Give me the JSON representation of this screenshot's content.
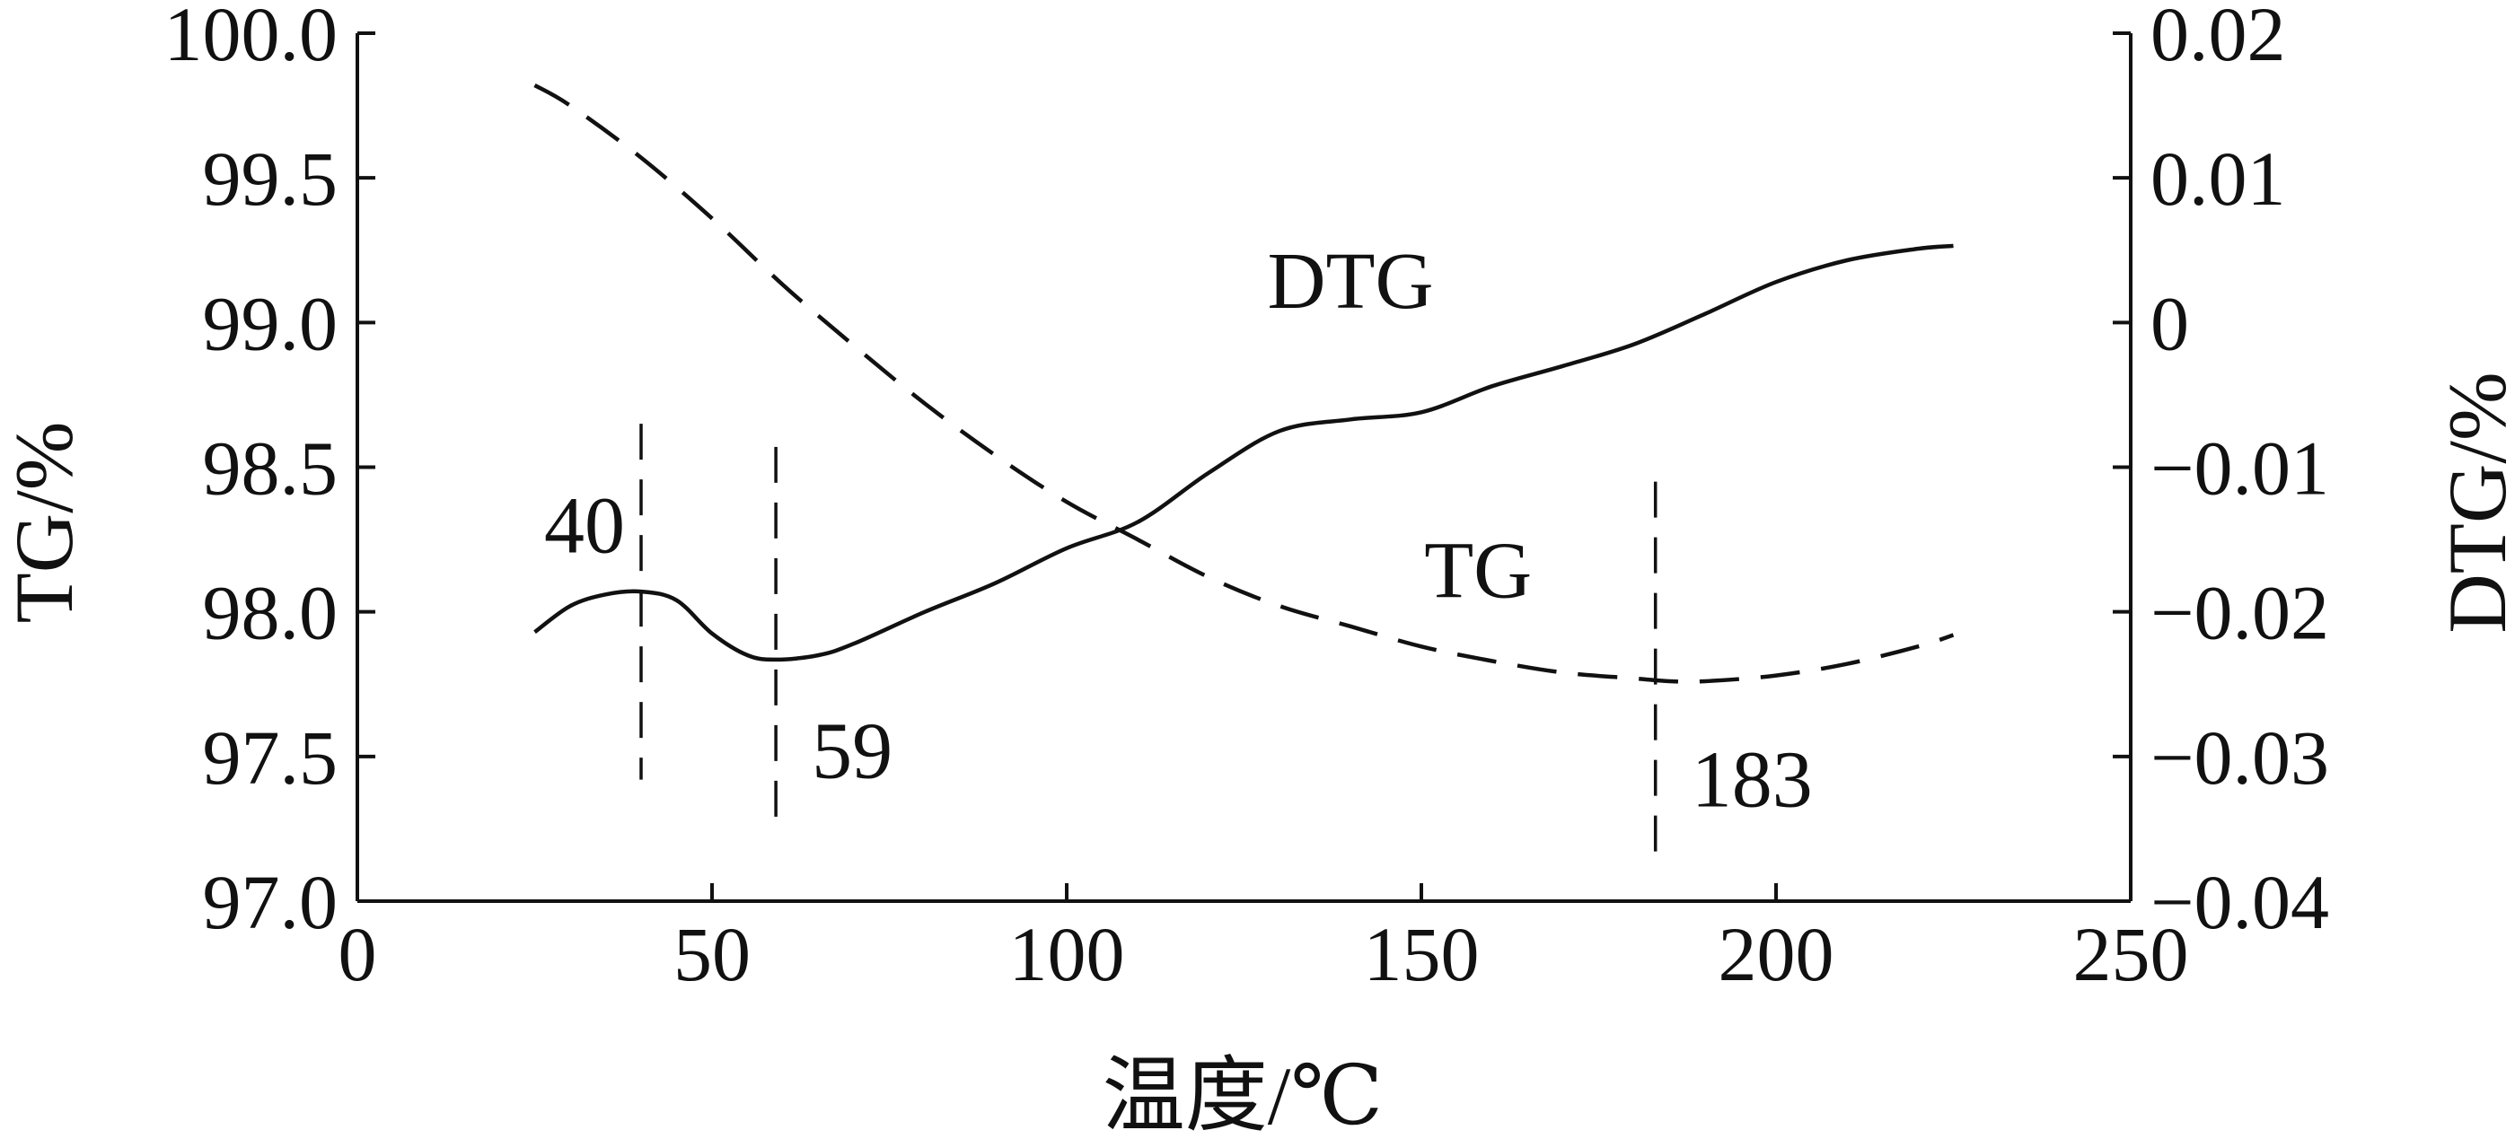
{
  "chart_data": {
    "type": "line",
    "x_axis": {
      "label": "温度/℃",
      "range": [
        0,
        250
      ],
      "ticks": [
        "0",
        "50",
        "100",
        "150",
        "200",
        "250"
      ]
    },
    "y_axis_left": {
      "label": "TG/%",
      "range": [
        97.0,
        100.0
      ],
      "ticks": [
        "97.0",
        "97.5",
        "98.0",
        "98.5",
        "99.0",
        "99.5",
        "100.0"
      ]
    },
    "y_axis_right": {
      "label": "DTG/%",
      "range": [
        -0.04,
        0.02
      ],
      "ticks": [
        "−0.04",
        "−0.03",
        "−0.02",
        "−0.01",
        "0",
        "0.01",
        "0.02"
      ]
    },
    "series": [
      {
        "name": "TG",
        "axis": "left",
        "style": "dashed",
        "x": [
          25,
          30,
          40,
          50,
          60,
          70,
          80,
          90,
          100,
          110,
          120,
          130,
          140,
          150,
          160,
          170,
          180,
          185,
          190,
          200,
          210,
          220,
          225
        ],
        "y": [
          99.82,
          99.75,
          99.57,
          99.36,
          99.13,
          98.92,
          98.72,
          98.54,
          98.38,
          98.25,
          98.12,
          98.02,
          97.95,
          97.88,
          97.83,
          97.79,
          97.77,
          97.76,
          97.76,
          97.78,
          97.82,
          97.88,
          97.92
        ]
      },
      {
        "name": "DTG",
        "axis": "right",
        "style": "solid",
        "x": [
          25,
          30,
          35,
          40,
          45,
          50,
          55,
          59,
          65,
          70,
          80,
          90,
          100,
          110,
          120,
          130,
          140,
          150,
          160,
          170,
          180,
          190,
          200,
          210,
          220,
          225
        ],
        "y": [
          -0.0214,
          -0.0196,
          -0.0188,
          -0.0186,
          -0.0192,
          -0.0215,
          -0.023,
          -0.0233,
          -0.023,
          -0.0222,
          -0.02,
          -0.018,
          -0.0156,
          -0.0138,
          -0.0104,
          -0.0075,
          -0.0067,
          -0.0062,
          -0.0044,
          -0.003,
          -0.0015,
          0.0006,
          0.0028,
          0.0043,
          0.0051,
          0.0053
        ]
      }
    ],
    "annotations": [
      {
        "label": "40",
        "x": 40,
        "line_top": 98.65,
        "line_bottom": 97.42,
        "label_side": "left"
      },
      {
        "label": "59",
        "x": 59,
        "line_top": 98.57,
        "line_bottom": 97.24,
        "label_side": "right"
      },
      {
        "label": "183",
        "x": 183,
        "line_top": 98.45,
        "line_bottom": 97.12,
        "label_side": "right"
      }
    ],
    "curve_labels": [
      {
        "text": "DTG",
        "x": 140,
        "y": 99.05
      },
      {
        "text": "TG",
        "x": 158,
        "y": 98.05
      }
    ],
    "grid": false,
    "legend": "none"
  }
}
